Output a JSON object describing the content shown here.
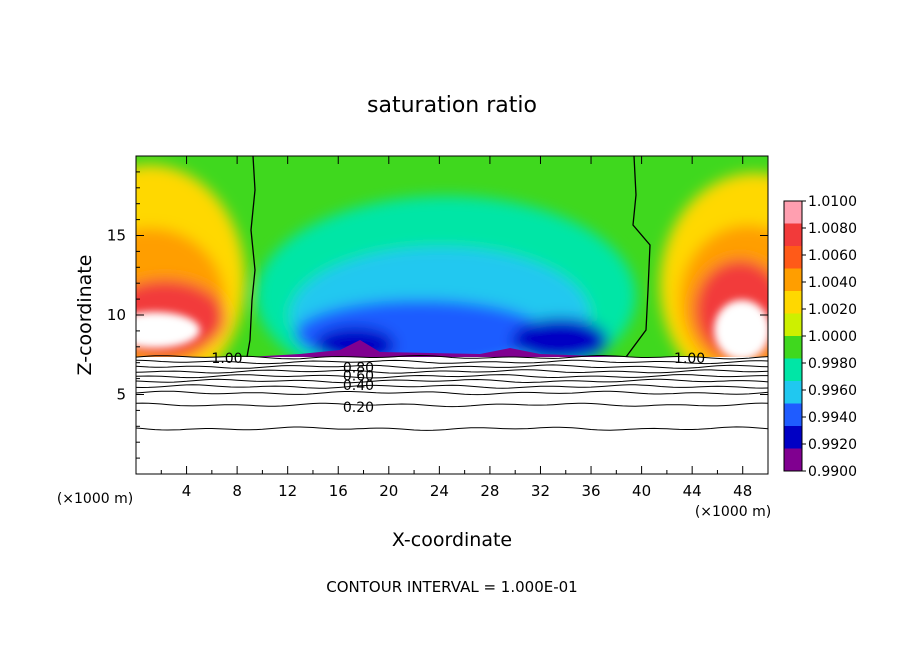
{
  "chart_data": {
    "type": "heatmap",
    "title": "saturation ratio",
    "xlabel": "X-coordinate",
    "ylabel": "Z-coordinate",
    "x_unit_left": "(×1000 m)",
    "x_unit_right": "(×1000 m)",
    "footer": "CONTOUR INTERVAL = 1.000E-01",
    "xlim": [
      0,
      50
    ],
    "ylim": [
      0,
      20
    ],
    "x_ticks": [
      4,
      8,
      12,
      16,
      20,
      24,
      28,
      32,
      36,
      40,
      44,
      48
    ],
    "x_tick_labels": [
      "4",
      "8",
      "12",
      "16",
      "20",
      "24",
      "28",
      "32",
      "36",
      "40",
      "44",
      "48"
    ],
    "y_ticks": [
      5,
      10,
      15
    ],
    "y_tick_labels": [
      "5",
      "10",
      "15"
    ],
    "colorbar": {
      "range": [
        0.99,
        1.01
      ],
      "labels": [
        "1.0100",
        "1.0080",
        "1.0060",
        "1.0040",
        "1.0020",
        "1.0000",
        "0.9980",
        "0.9960",
        "0.9940",
        "0.9920",
        "0.9900"
      ],
      "colors": [
        "#ff9fb0",
        "#f23a3a",
        "#ff5a18",
        "#ff9e00",
        "#ffd800",
        "#cdf000",
        "#3fd81e",
        "#00e6a6",
        "#20c8f0",
        "#1f5cff",
        "#0000c4",
        "#800090"
      ]
    },
    "contour_levels_below_cloud": [
      0.2,
      0.4,
      0.6,
      0.8,
      1.0
    ],
    "contour_labels": [
      {
        "text": "1.00",
        "x": 7.2,
        "z": 7.3
      },
      {
        "text": "0.80",
        "x": 17.6,
        "z": 6.7
      },
      {
        "text": "0.60",
        "x": 17.6,
        "z": 6.2
      },
      {
        "text": "0.40",
        "x": 17.6,
        "z": 5.6
      },
      {
        "text": "0.20",
        "x": 17.6,
        "z": 4.2
      },
      {
        "text": "1.00",
        "x": 43.8,
        "z": 7.3
      }
    ]
  }
}
